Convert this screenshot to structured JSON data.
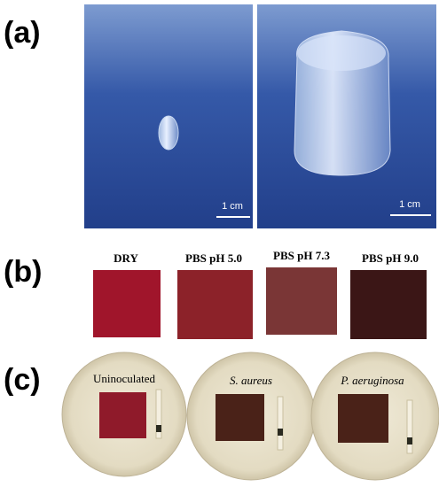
{
  "panels": {
    "a": {
      "label": "(a)",
      "scale_bars": [
        "1 cm",
        "1 cm"
      ]
    },
    "b": {
      "label": "(b)",
      "samples": [
        "DRY",
        "PBS pH 5.0",
        "PBS pH 7.3",
        "PBS pH 9.0"
      ]
    },
    "c": {
      "label": "(c)",
      "plates": [
        "Uninoculated",
        "S. aureus",
        "P. aeruginosa"
      ]
    }
  }
}
